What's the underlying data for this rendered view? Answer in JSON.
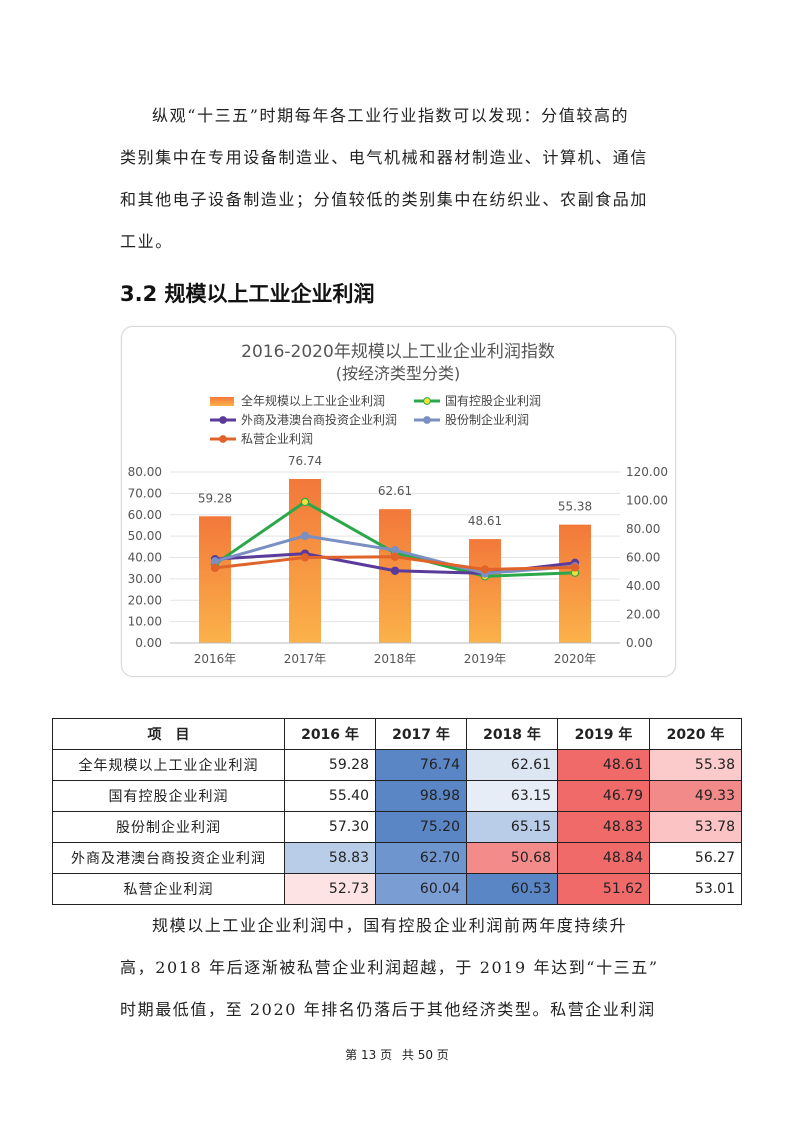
{
  "intro": {
    "lines": [
      "纵观“十三五”时期每年各工业行业指数可以发现：分值较高的",
      "类别集中在专用设备制造业、电气机械和器材制造业、计算机、通信",
      "和其他电子设备制造业；分值较低的类别集中在纺织业、农副食品加",
      "工业。"
    ]
  },
  "section_heading": "3.2 规模以上工业企业利润",
  "chart_data": {
    "type": "bar",
    "title": "2016-2020年规模以上工业企业利润指数",
    "subtitle": "(按经济类型分类)",
    "categories": [
      "2016年",
      "2017年",
      "2018年",
      "2019年",
      "2020年"
    ],
    "bar_series": {
      "name": "全年规模以上工业企业利润",
      "values": [
        59.28,
        76.74,
        62.61,
        48.61,
        55.38
      ],
      "color": "#f08a3c"
    },
    "bar_labels": [
      "59.28",
      "76.74",
      "62.61",
      "48.61",
      "55.38"
    ],
    "line_series": [
      {
        "name": "国有控股企业利润",
        "values": [
          55.4,
          98.98,
          63.15,
          46.79,
          49.33
        ],
        "color": "#2aa84a",
        "marker": "#f2e23a"
      },
      {
        "name": "外商及港澳台商投资企业利润",
        "values": [
          58.83,
          62.7,
          50.68,
          48.84,
          56.27
        ],
        "color": "#5b3a9a",
        "marker": "#5b3a9a"
      },
      {
        "name": "股份制企业利润",
        "values": [
          57.3,
          75.2,
          65.15,
          48.83,
          53.78
        ],
        "color": "#7a8fc2",
        "marker": "#7a8fc2"
      },
      {
        "name": "私营企业利润",
        "values": [
          52.73,
          60.04,
          60.53,
          51.62,
          53.01
        ],
        "color": "#e0642a",
        "marker": "#e0642a"
      }
    ],
    "y_left": {
      "min": 0,
      "max": 80,
      "step": 10,
      "ticks": [
        "0.00",
        "10.00",
        "20.00",
        "30.00",
        "40.00",
        "50.00",
        "60.00",
        "70.00",
        "80.00"
      ]
    },
    "y_right": {
      "min": 0,
      "max": 120,
      "step": 20,
      "ticks": [
        "0.00",
        "20.00",
        "40.00",
        "60.00",
        "80.00",
        "100.00",
        "120.00"
      ]
    },
    "legend_position": "top"
  },
  "table": {
    "headers": [
      "项　目",
      "2016 年",
      "2017 年",
      "2018 年",
      "2019 年",
      "2020 年"
    ],
    "rows": [
      {
        "label": "全年规模以上工业企业利润",
        "values": [
          "59.28",
          "76.74",
          "62.61",
          "48.61",
          "55.38"
        ],
        "colors": [
          "#ffffff",
          "#5b86c6",
          "#dce6f3",
          "#f06a6a",
          "#fbcaca"
        ]
      },
      {
        "label": "国有控股企业利润",
        "values": [
          "55.40",
          "98.98",
          "63.15",
          "46.79",
          "49.33"
        ],
        "colors": [
          "#ffffff",
          "#5b86c6",
          "#e6edf7",
          "#f06a6a",
          "#f38a8a"
        ]
      },
      {
        "label": "股份制企业利润",
        "values": [
          "57.30",
          "75.20",
          "65.15",
          "48.83",
          "53.78"
        ],
        "colors": [
          "#ffffff",
          "#5b86c6",
          "#b9cde9",
          "#f06a6a",
          "#fbc3c3"
        ]
      },
      {
        "label": "外商及港澳台商投资企业利润",
        "values": [
          "58.83",
          "62.70",
          "50.68",
          "48.84",
          "56.27"
        ],
        "colors": [
          "#b9cde9",
          "#6f95cf",
          "#f48b8b",
          "#f06a6a",
          "#ffffff"
        ]
      },
      {
        "label": "私营企业利润",
        "values": [
          "52.73",
          "60.04",
          "60.53",
          "51.62",
          "53.01"
        ],
        "colors": [
          "#fde3e3",
          "#7a9ed4",
          "#5b86c6",
          "#f06a6a",
          "#ffffff"
        ]
      }
    ]
  },
  "outro": {
    "lines": [
      "规模以上工业企业利润中，国有控股企业利润前两年度持续升",
      "高，2018 年后逐渐被私营企业利润超越，于 2019 年达到“十三五”",
      "时期最低值，至 2020 年排名仍落后于其他经济类型。私营企业利润"
    ]
  },
  "footer": {
    "page": "第 13 页",
    "total": "共 50 页"
  }
}
